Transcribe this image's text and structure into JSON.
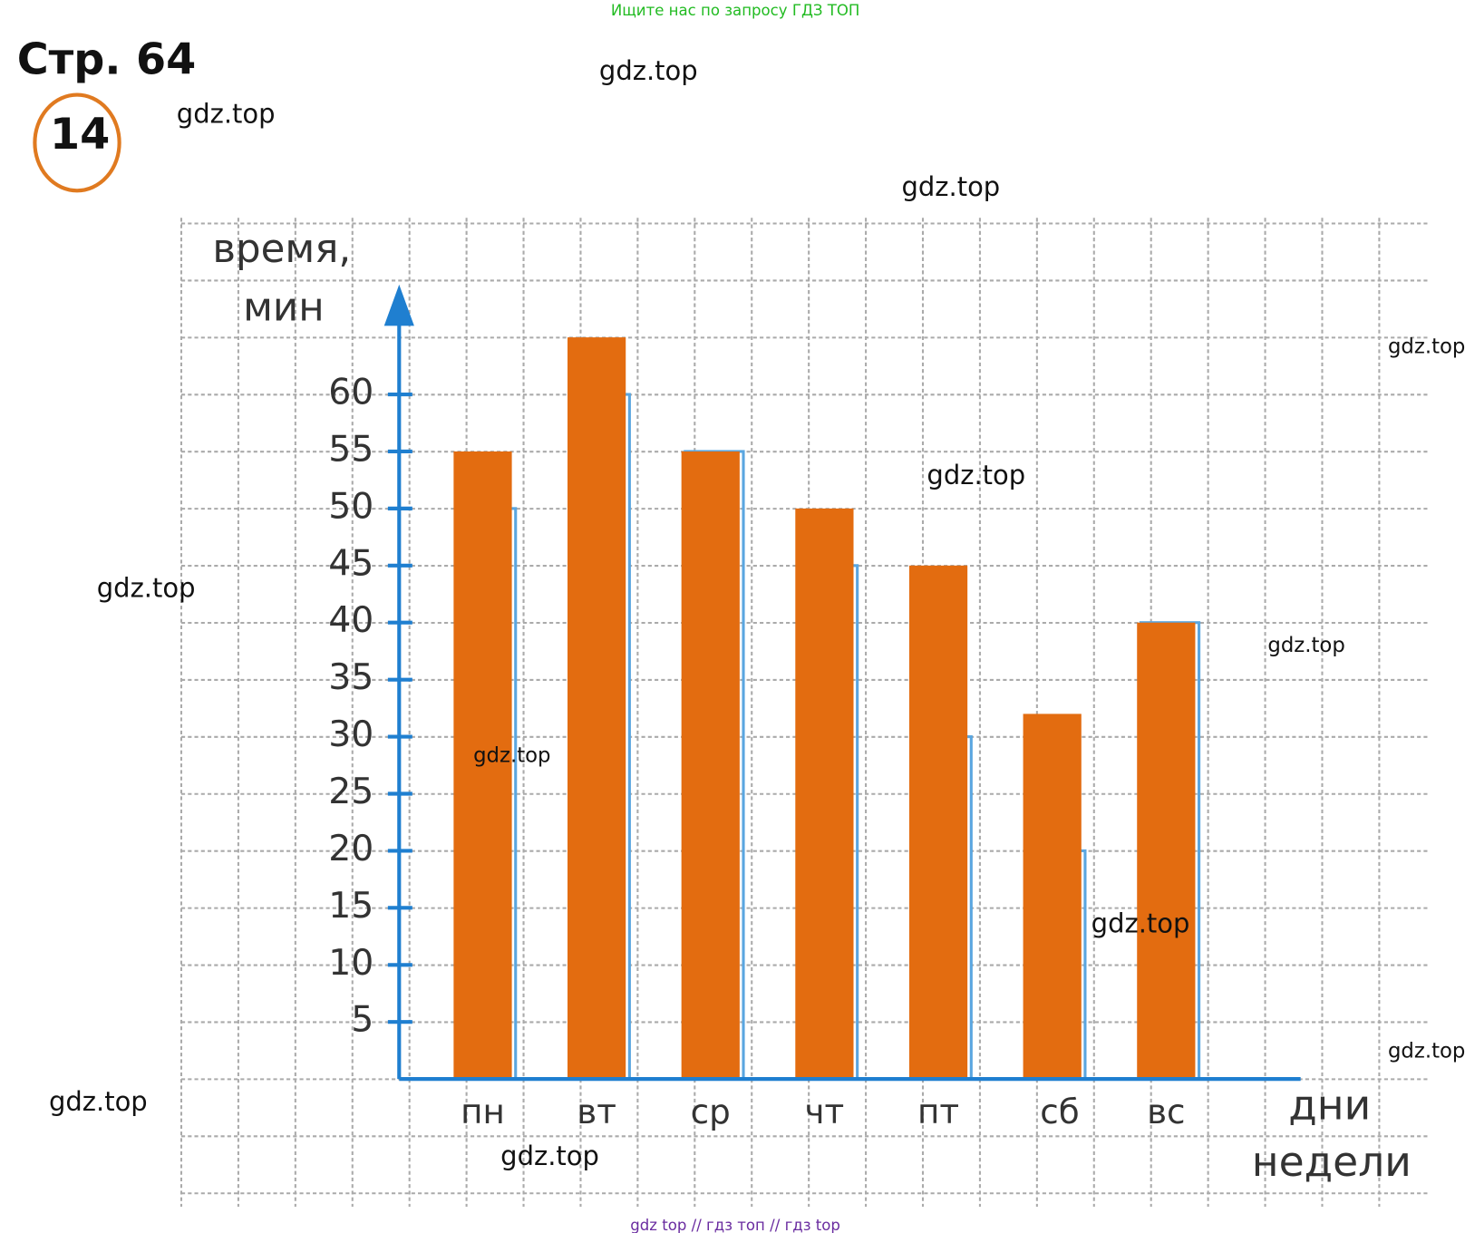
{
  "header": {
    "banner": "Ищите нас по запросу ГДЗ ТОП",
    "page": "Стр. 64",
    "task": "14",
    "footer": "gdz top  //  гдз топ  //  гдз top"
  },
  "watermarks": [
    "gdz.top",
    "gdz.top",
    "gdz.top",
    "gdz.top",
    "gdz.top",
    "gdz.top",
    "gdz.top",
    "gdz.top",
    "gdz.top",
    "gdz.top",
    "gdz.top",
    "gdz.top"
  ],
  "chart_data": {
    "type": "bar",
    "y_label": [
      "время,",
      "мин"
    ],
    "x_label": [
      "дни",
      "недели"
    ],
    "categories": [
      "пн",
      "вт",
      "ср",
      "чт",
      "пт",
      "сб",
      "вс"
    ],
    "series": [
      {
        "color": "#5aa6e0",
        "values": [
          50,
          60,
          55,
          45,
          30,
          20,
          40
        ]
      },
      {
        "color": "#e36c10",
        "values": [
          55,
          65,
          55,
          50,
          45,
          32,
          40
        ]
      }
    ],
    "ylim": [
      0,
      70
    ],
    "yticks": [
      5,
      10,
      15,
      20,
      25,
      30,
      35,
      40,
      45,
      50,
      55,
      60
    ],
    "grid": true,
    "axis_color": "#1f7fd0"
  }
}
